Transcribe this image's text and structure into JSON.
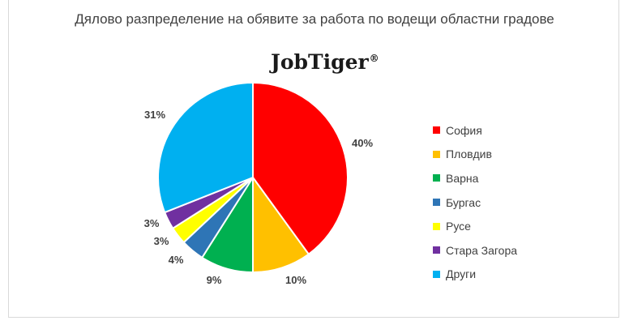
{
  "chart_data": {
    "type": "pie",
    "title": "Дялово разпределение на обявите за работа по водещи областни градове",
    "logo_text": "JobTiger",
    "logo_mark": "®",
    "categories": [
      "София",
      "Пловдив",
      "Варна",
      "Бургас",
      "Русе",
      "Стара Загора",
      "Други"
    ],
    "values": [
      40,
      10,
      9,
      4,
      3,
      3,
      31
    ],
    "labels": [
      "40%",
      "10%",
      "9%",
      "4%",
      "3%",
      "3%",
      "31%"
    ],
    "colors": [
      "#ff0000",
      "#ffc000",
      "#00b050",
      "#2e75b6",
      "#ffff00",
      "#7030a0",
      "#00b0f0"
    ],
    "legend_position": "right"
  }
}
